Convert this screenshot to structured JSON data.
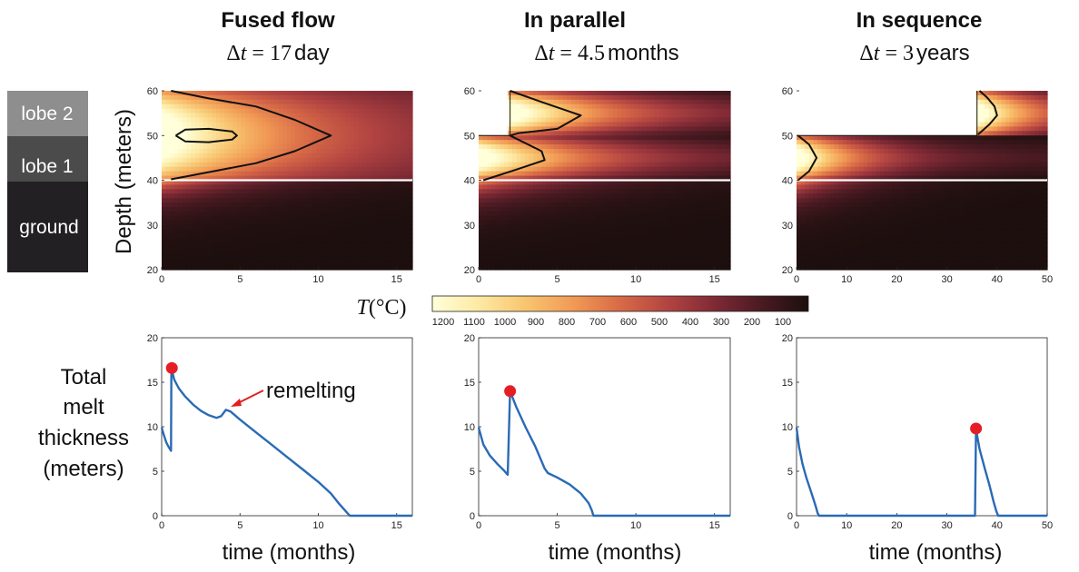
{
  "layer_legend": {
    "items": [
      {
        "label": "lobe 2",
        "color": "#8e8e8e"
      },
      {
        "label": "lobe 1",
        "color": "#4b4b4b"
      },
      {
        "label": "ground",
        "color": "#222022"
      }
    ]
  },
  "top_ylabel": "Depth (meters)",
  "bottom_ylabel": [
    "Total",
    "melt",
    "thickness",
    "(meters)"
  ],
  "xlabel": "time (months)",
  "colorbar": {
    "label_symbol": "T",
    "label_unit": "(°C)",
    "ticks": [
      1200,
      1100,
      1000,
      900,
      800,
      700,
      600,
      500,
      400,
      300,
      200,
      100
    ],
    "colors": [
      "#ffffd9",
      "#fde9a3",
      "#f8c46f",
      "#f19a55",
      "#d86a47",
      "#b24442",
      "#7f2a35",
      "#4a1a22",
      "#1c0f0e"
    ]
  },
  "annotation": {
    "text": "remelting",
    "color": "#e02020"
  },
  "chart_data": [
    {
      "panel": "fused",
      "title": "Fused flow",
      "dt_value": "17",
      "dt_unit": "day",
      "type": "heatmap",
      "x_range": [
        0,
        16
      ],
      "y_range": [
        20,
        60
      ],
      "x_ticks": [
        0,
        5,
        10,
        15
      ],
      "y_ticks": [
        20,
        30,
        40,
        50,
        60
      ],
      "lobe_boundaries": [
        {
          "x_start": 0,
          "depth_top": 60
        }
      ],
      "contours": [
        {
          "points": [
            [
              0.6,
              60
            ],
            [
              3,
              58.3
            ],
            [
              6,
              56.5
            ],
            [
              8.5,
              53.5
            ],
            [
              10.8,
              50
            ],
            [
              8.5,
              46.5
            ],
            [
              6,
              43.8
            ],
            [
              3,
              41.8
            ],
            [
              0.6,
              40.2
            ]
          ]
        },
        {
          "points": [
            [
              0.9,
              50
            ],
            [
              1.5,
              51.3
            ],
            [
              3,
              51.5
            ],
            [
              4.5,
              50.9
            ],
            [
              4.8,
              50
            ],
            [
              4.5,
              49.1
            ],
            [
              3,
              48.5
            ],
            [
              1.5,
              48.7
            ],
            [
              0.9,
              50
            ]
          ]
        }
      ]
    },
    {
      "panel": "parallel",
      "title": "In parallel",
      "dt_value": "4.5",
      "dt_unit": "months",
      "type": "heatmap",
      "x_range": [
        0,
        16
      ],
      "y_range": [
        20,
        60
      ],
      "x_ticks": [
        0,
        5,
        10,
        15
      ],
      "y_ticks": [
        20,
        30,
        40,
        50,
        60
      ],
      "lobe_boundaries": [
        {
          "x_start": 2,
          "depth_top": 60
        }
      ],
      "contours": [
        {
          "points": [
            [
              2,
              60
            ],
            [
              4,
              57.5
            ],
            [
              6.5,
              54.5
            ],
            [
              5,
              51.5
            ],
            [
              2.5,
              50.5
            ],
            [
              2,
              50
            ],
            [
              4,
              46.5
            ],
            [
              4.2,
              44.5
            ],
            [
              2.5,
              42.5
            ],
            [
              0.3,
              40
            ]
          ]
        }
      ]
    },
    {
      "panel": "sequence",
      "title": "In sequence",
      "dt_value": "3",
      "dt_unit": "years",
      "type": "heatmap",
      "x_range": [
        0,
        50
      ],
      "y_range": [
        20,
        60
      ],
      "x_ticks": [
        0,
        10,
        20,
        30,
        40,
        50
      ],
      "y_ticks": [
        20,
        30,
        40,
        50,
        60
      ],
      "lobe_boundaries": [
        {
          "x_start": 36,
          "depth_top": 60
        }
      ],
      "contours": [
        {
          "points": [
            [
              36.5,
              60
            ],
            [
              38,
              58.5
            ],
            [
              39.5,
              56.5
            ],
            [
              40,
              54.5
            ],
            [
              38.5,
              52.5
            ],
            [
              36.2,
              50.2
            ]
          ]
        },
        {
          "points": [
            [
              0.3,
              50
            ],
            [
              2.5,
              48
            ],
            [
              4,
              45
            ],
            [
              2.5,
              42
            ],
            [
              0.3,
              40
            ]
          ]
        }
      ]
    },
    {
      "panel": "fused",
      "type": "line",
      "x_range": [
        0,
        16
      ],
      "y_range": [
        0,
        20
      ],
      "x_ticks": [
        0,
        5,
        10,
        15
      ],
      "y_ticks": [
        0,
        5,
        10,
        15,
        20
      ],
      "series": [
        {
          "color": "#2a6ab5",
          "x": [
            0,
            0.15,
            0.3,
            0.45,
            0.6,
            0.62,
            0.8,
            1.1,
            1.5,
            2,
            2.5,
            3,
            3.5,
            3.8,
            4.1,
            4.4,
            5,
            6,
            7,
            8,
            9,
            10,
            10.8,
            11.3,
            11.7,
            11.9,
            12,
            16
          ],
          "y": [
            9.9,
            9.0,
            8.2,
            7.7,
            7.3,
            16.6,
            15.3,
            14.3,
            13.4,
            12.5,
            11.8,
            11.3,
            11.0,
            11.2,
            11.9,
            11.7,
            10.8,
            9.4,
            8.0,
            6.6,
            5.2,
            3.8,
            2.5,
            1.4,
            0.6,
            0.2,
            0,
            0
          ]
        }
      ],
      "markers": [
        {
          "x": 0.65,
          "y": 16.6,
          "color": "#e51e25"
        }
      ],
      "annotation_target": {
        "x": 4.1,
        "y": 12.0
      }
    },
    {
      "panel": "parallel",
      "type": "line",
      "x_range": [
        0,
        16
      ],
      "y_range": [
        0,
        20
      ],
      "x_ticks": [
        0,
        5,
        10,
        15
      ],
      "y_ticks": [
        0,
        5,
        10,
        15,
        20
      ],
      "series": [
        {
          "color": "#2a6ab5",
          "x": [
            0,
            0.3,
            0.7,
            1.2,
            1.6,
            1.85,
            2.0,
            2.4,
            3.0,
            3.6,
            4.2,
            4.4,
            5,
            5.8,
            6.5,
            7.0,
            7.2,
            7.3,
            16
          ],
          "y": [
            9.9,
            8.0,
            6.8,
            5.8,
            5.1,
            4.6,
            14.0,
            12.2,
            9.9,
            7.8,
            5.3,
            4.8,
            4.3,
            3.5,
            2.5,
            1.4,
            0.6,
            0,
            0
          ]
        }
      ],
      "markers": [
        {
          "x": 2.0,
          "y": 14.0,
          "color": "#e51e25"
        }
      ]
    },
    {
      "panel": "sequence",
      "type": "line",
      "x_range": [
        0,
        50
      ],
      "y_range": [
        0,
        20
      ],
      "x_ticks": [
        0,
        10,
        20,
        30,
        40,
        50
      ],
      "y_ticks": [
        0,
        5,
        10,
        15,
        20
      ],
      "series": [
        {
          "color": "#2a6ab5",
          "x": [
            0,
            0.5,
            1.2,
            2,
            3,
            3.8,
            4.2,
            4.5,
            35.6,
            35.8,
            36.5,
            37.5,
            38.5,
            39.3,
            39.8,
            40.2,
            50
          ],
          "y": [
            9.9,
            7.7,
            5.8,
            4.2,
            2.5,
            1.1,
            0.3,
            0,
            0,
            9.7,
            7.5,
            5.4,
            3.4,
            1.6,
            0.6,
            0,
            0
          ]
        }
      ],
      "markers": [
        {
          "x": 35.8,
          "y": 9.8,
          "color": "#e51e25"
        }
      ]
    }
  ]
}
